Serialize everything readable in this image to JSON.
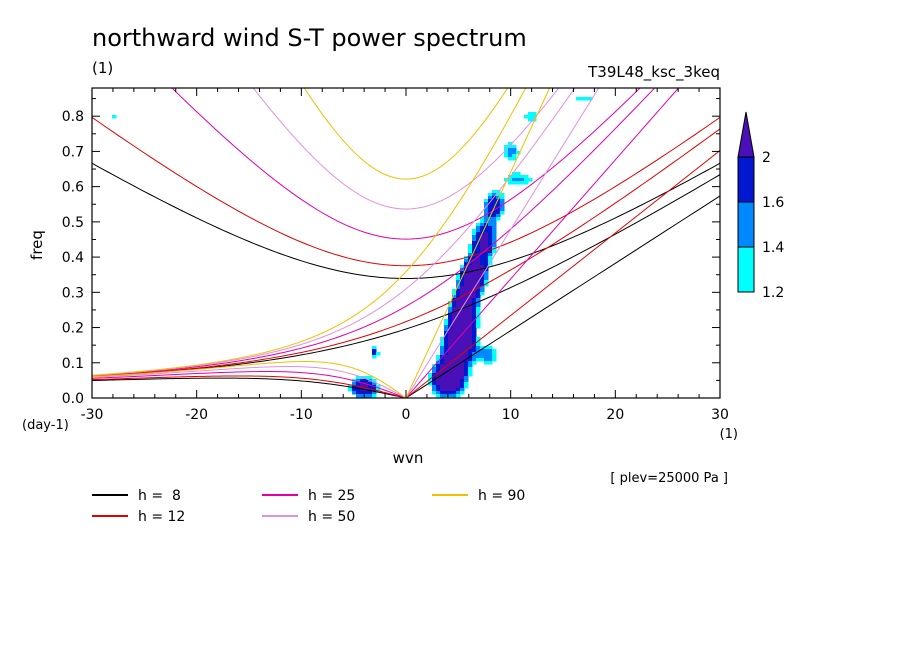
{
  "chart_data": {
    "type": "heatmap",
    "title": "northward wind S-T power spectrum",
    "units_left": "(1)",
    "experiment": "T39L48_ksc_3keq",
    "xlabel": "wvn",
    "ylabel": "freq",
    "x_unit_label": "(1)",
    "y_unit_label": "(day-1)",
    "level_note": "[ plev=25000 Pa ]",
    "xlim": [
      -30,
      30
    ],
    "ylim": [
      0.0,
      0.88
    ],
    "xticks": [
      "-30",
      "-20",
      "-10",
      "0",
      "10",
      "20",
      "30"
    ],
    "xtick_values": [
      -30,
      -20,
      -10,
      0,
      10,
      20,
      30
    ],
    "yticks": [
      "0.0",
      "0.1",
      "0.2",
      "0.3",
      "0.4",
      "0.5",
      "0.6",
      "0.7",
      "0.8"
    ],
    "ytick_values": [
      0.0,
      0.1,
      0.2,
      0.3,
      0.4,
      0.5,
      0.6,
      0.7,
      0.8
    ],
    "colorbar": {
      "levels": [
        "1.2",
        "1.4",
        "1.6",
        "2"
      ],
      "colors": [
        "#00ffff",
        "#0088ff",
        "#0018d0",
        "#4a10b8"
      ]
    },
    "legend": [
      {
        "label": "h =  8",
        "color": "#000000"
      },
      {
        "label": "h = 12",
        "color": "#e00000"
      },
      {
        "label": "h = 25",
        "color": "#e000b0"
      },
      {
        "label": "h = 50",
        "color": "#e090e0"
      },
      {
        "label": "h = 90",
        "color": "#f0c000"
      }
    ],
    "series": [
      {
        "name": "h =  8",
        "equivalent_depth": 8
      },
      {
        "name": "h = 12",
        "equivalent_depth": 12
      },
      {
        "name": "h = 25",
        "equivalent_depth": 25
      },
      {
        "name": "h = 50",
        "equivalent_depth": 50
      },
      {
        "name": "h = 90",
        "equivalent_depth": 90
      }
    ],
    "power_regions": [
      {
        "x": 4.0,
        "y": 0.05,
        "sx": 2.0,
        "sy": 0.06,
        "v": 2.6
      },
      {
        "x": 5.0,
        "y": 0.15,
        "sx": 1.8,
        "sy": 0.07,
        "v": 2.5
      },
      {
        "x": 5.5,
        "y": 0.25,
        "sx": 1.6,
        "sy": 0.07,
        "v": 2.4
      },
      {
        "x": 6.5,
        "y": 0.35,
        "sx": 1.6,
        "sy": 0.06,
        "v": 2.3
      },
      {
        "x": 7.5,
        "y": 0.45,
        "sx": 1.6,
        "sy": 0.06,
        "v": 2.1
      },
      {
        "x": 8.5,
        "y": 0.55,
        "sx": 1.5,
        "sy": 0.05,
        "v": 1.8
      },
      {
        "x": 10.0,
        "y": 0.7,
        "sx": 1.5,
        "sy": 0.05,
        "v": 1.5
      },
      {
        "x": 12.0,
        "y": 0.8,
        "sx": 1.5,
        "sy": 0.04,
        "v": 1.35
      },
      {
        "x": 17.0,
        "y": 0.85,
        "sx": 2.5,
        "sy": 0.03,
        "v": 1.3
      },
      {
        "x": -4.0,
        "y": 0.03,
        "sx": 1.8,
        "sy": 0.04,
        "v": 2.2
      },
      {
        "x": -3.0,
        "y": 0.13,
        "sx": 0.5,
        "sy": 0.02,
        "v": 1.9
      },
      {
        "x": 11.0,
        "y": 0.62,
        "sx": 2.5,
        "sy": 0.03,
        "v": 1.35
      },
      {
        "x": -28.0,
        "y": 0.8,
        "sx": 1.0,
        "sy": 0.02,
        "v": 1.25
      },
      {
        "x": 8.0,
        "y": 0.12,
        "sx": 1.2,
        "sy": 0.04,
        "v": 1.45
      }
    ]
  }
}
